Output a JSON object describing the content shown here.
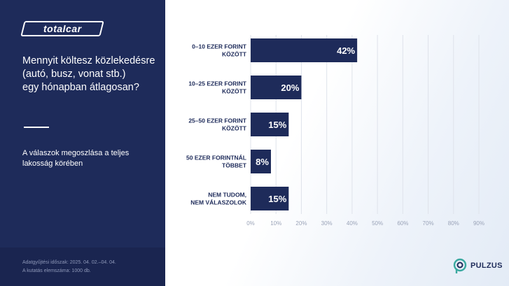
{
  "brand": {
    "logo_text": "totalcar",
    "pulzus_text": "PULZUS"
  },
  "question": "Mennyit költesz közlekedésre\n(autó, busz, vonat stb.)\negy hónapban átlagosan?",
  "subtitle": "A válaszok megoszlása a teljes\nlakosság körében",
  "footer": "Adatgyűjtési időszak: 2025. 04. 02.–04. 04.\nA kutatás elemszáma: 1000 db.",
  "colors": {
    "panel": "#1e2b5a",
    "bar": "#1e2b5a",
    "grid": "#dfe3eb",
    "tick": "#9aa3b8",
    "category": "#1e2b5a"
  },
  "chart_data": {
    "type": "bar",
    "orientation": "horizontal",
    "categories": [
      [
        "0–10 EZER FORINT",
        "KÖZÖTT"
      ],
      [
        "10–25 EZER FORINT",
        "KÖZÖTT"
      ],
      [
        "25–50 EZER FORINT",
        "KÖZÖTT"
      ],
      [
        "50 EZER FORINTNÁL",
        "TÖBBET"
      ],
      [
        "NEM TUDOM,",
        "NEM VÁLASZOLOK"
      ]
    ],
    "values": [
      42,
      20,
      15,
      8,
      15
    ],
    "value_labels": [
      "42%",
      "20%",
      "15%",
      "8%",
      "15%"
    ],
    "xlim": [
      0,
      90
    ],
    "ticks": [
      0,
      10,
      20,
      30,
      40,
      50,
      60,
      70,
      80,
      90
    ],
    "tick_labels": [
      "0%",
      "10%",
      "20%",
      "30%",
      "40%",
      "50%",
      "60%",
      "70%",
      "80%",
      "90%"
    ],
    "grid": true
  }
}
